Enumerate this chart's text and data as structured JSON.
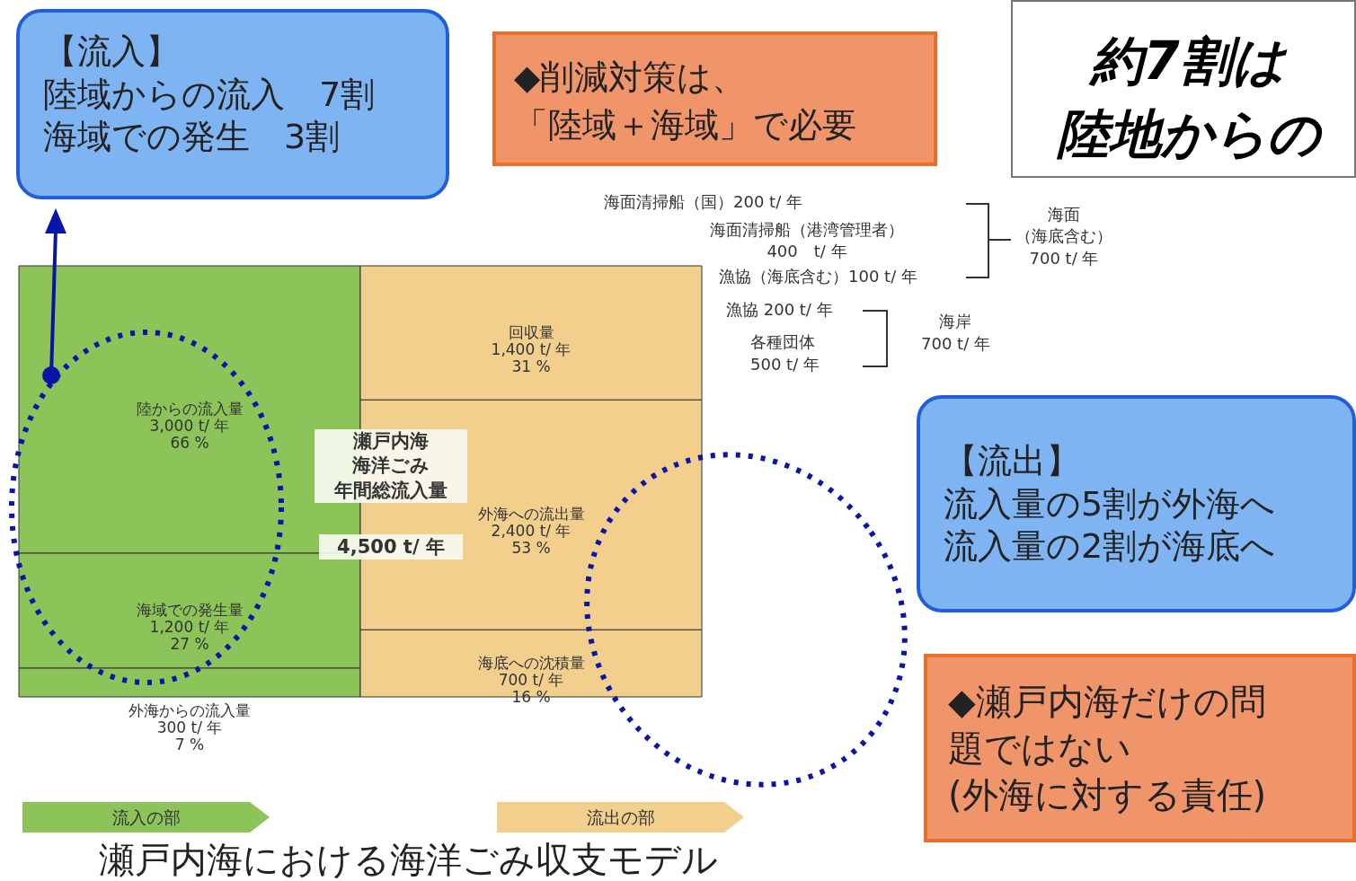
{
  "chart_data": {
    "type": "other",
    "title": "瀬戸内海における海洋ごみ収支モデル",
    "categories": [
      "陸からの流入量",
      "海域での発生量",
      "外海からの流入量",
      "回収量",
      "外海への流出量",
      "海底への沈積量"
    ],
    "series": [
      {
        "name": "流入の部",
        "color": "#8cc45a",
        "values": [
          3000,
          1200,
          300,
          null,
          null,
          null
        ],
        "value_labels": [
          "3,000 t/ 年\n66 %",
          "1,200 t/ 年\n27 %",
          "300 t/ 年\n7 %",
          null,
          null,
          null
        ]
      },
      {
        "name": "流出の部",
        "color": "#f3cf8e",
        "values": [
          null,
          null,
          null,
          1400,
          2400,
          700
        ],
        "value_labels": [
          null,
          null,
          null,
          "1,400 t/ 年\n31 %",
          "2,400 t/ 年\n53 %",
          "700 t/ 年\n16 %"
        ]
      }
    ],
    "annotations": [
      "【流入】",
      "陸域からの流入　7割",
      "海域での発生　3割",
      "◆削減対策は、",
      "「陸域＋海域」で必要",
      "約7割は",
      "陸地からの",
      "瀬戸内海",
      "海洋ごみ",
      "年間総流入量",
      "4,500 t/ 年",
      "海面清掃船（国）200 t/ 年",
      "海面清掃船（港湾管理者）",
      "400　t/ 年",
      "漁協（海底含む）100 t/ 年",
      "海面",
      "（海底含む）",
      "700 t/ 年",
      "漁協 200 t/ 年",
      "各種団体",
      "500 t/ 年",
      "海岸",
      "700 t/ 年",
      "【流出】",
      "流入量の5割が外海へ",
      "流入量の2割が海底へ",
      "◆瀬戸内海だけの問",
      "題ではない",
      "(外海に対する責任)"
    ]
  }
}
